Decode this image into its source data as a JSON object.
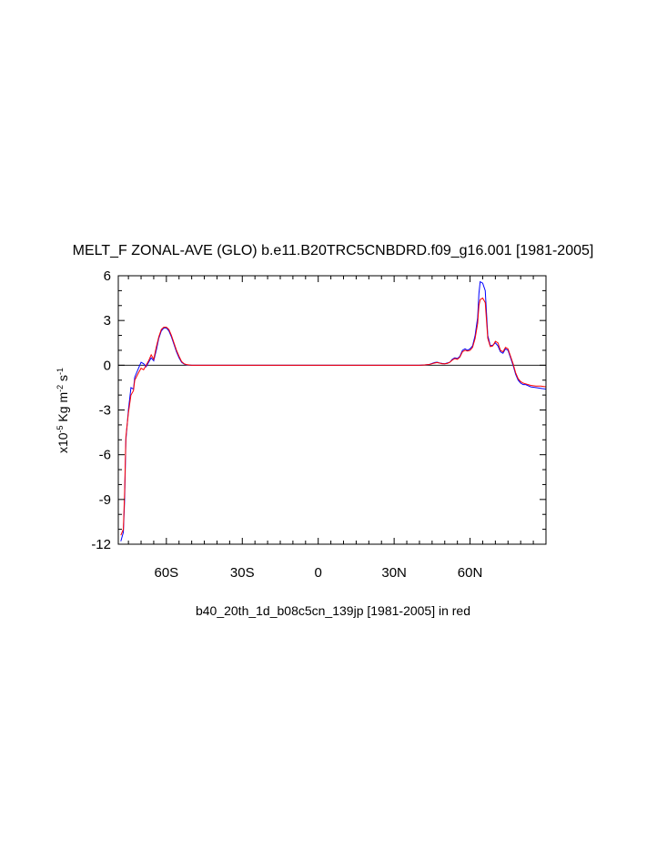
{
  "chart_data": {
    "type": "line",
    "title": "MELT_F ZONAL-AVE (GLO) b.e11.B20TRC5CNBDRD.f09_g16.001 [1981-2005]",
    "xlabel": "b40_20th_1d_b08c5cn_139jp [1981-2005] in red",
    "ylabel": {
      "prefix": "x10",
      "exp1": "-5",
      "mid": " Kg m",
      "exp2": "-2",
      "mid2": " s",
      "exp3": "-1"
    },
    "xlim": [
      -79,
      90
    ],
    "ylim": [
      -12,
      6
    ],
    "x_ticks": [
      {
        "value": -60,
        "label": "60S"
      },
      {
        "value": -30,
        "label": "30S"
      },
      {
        "value": 0,
        "label": "0"
      },
      {
        "value": 30,
        "label": "30N"
      },
      {
        "value": 60,
        "label": "60N"
      }
    ],
    "y_ticks": [
      {
        "value": 6,
        "label": "6"
      },
      {
        "value": 3,
        "label": "3"
      },
      {
        "value": 0,
        "label": "0"
      },
      {
        "value": -3,
        "label": "-3"
      },
      {
        "value": -6,
        "label": "-6"
      },
      {
        "value": -9,
        "label": "-9"
      },
      {
        "value": -12,
        "label": "-12"
      }
    ],
    "zero_line": true,
    "series": [
      {
        "color": "#0000ff",
        "points": [
          [
            -78,
            -11.8
          ],
          [
            -77,
            -11.2
          ],
          [
            -76.5,
            -9
          ],
          [
            -76,
            -5
          ],
          [
            -75,
            -3
          ],
          [
            -74,
            -1.5
          ],
          [
            -73,
            -1.6
          ],
          [
            -72.5,
            -0.8
          ],
          [
            -71,
            -0.2
          ],
          [
            -70,
            0.2
          ],
          [
            -69,
            0.1
          ],
          [
            -68,
            -0.1
          ],
          [
            -67,
            0.2
          ],
          [
            -66,
            0.5
          ],
          [
            -65,
            0.3
          ],
          [
            -64,
            1
          ],
          [
            -63,
            1.8
          ],
          [
            -62,
            2.3
          ],
          [
            -61,
            2.5
          ],
          [
            -60,
            2.5
          ],
          [
            -59,
            2.3
          ],
          [
            -58,
            1.9
          ],
          [
            -57,
            1.4
          ],
          [
            -56,
            0.9
          ],
          [
            -55,
            0.5
          ],
          [
            -54,
            0.2
          ],
          [
            -53,
            0.08
          ],
          [
            -52,
            0.03
          ],
          [
            -50,
            0
          ],
          [
            0,
            0
          ],
          [
            40,
            0
          ],
          [
            42,
            0.02
          ],
          [
            44,
            0.06
          ],
          [
            45,
            0.12
          ],
          [
            46,
            0.18
          ],
          [
            47,
            0.2
          ],
          [
            48,
            0.15
          ],
          [
            49,
            0.12
          ],
          [
            50,
            0.1
          ],
          [
            51,
            0.15
          ],
          [
            52,
            0.2
          ],
          [
            53,
            0.4
          ],
          [
            54,
            0.5
          ],
          [
            55,
            0.45
          ],
          [
            56,
            0.6
          ],
          [
            57,
            1.0
          ],
          [
            58,
            1.1
          ],
          [
            59,
            1.0
          ],
          [
            60,
            1.1
          ],
          [
            61,
            1.3
          ],
          [
            62,
            2.0
          ],
          [
            63,
            3.2
          ],
          [
            63.5,
            4.8
          ],
          [
            64,
            5.6
          ],
          [
            65,
            5.5
          ],
          [
            66,
            5.0
          ],
          [
            66.5,
            3.5
          ],
          [
            67,
            2.0
          ],
          [
            68,
            1.3
          ],
          [
            69,
            1.35
          ],
          [
            70,
            1.5
          ],
          [
            71,
            1.3
          ],
          [
            72,
            0.9
          ],
          [
            73,
            0.8
          ],
          [
            74,
            1.1
          ],
          [
            75,
            1.0
          ],
          [
            76,
            0.5
          ],
          [
            77,
            0
          ],
          [
            78,
            -0.6
          ],
          [
            79,
            -1.0
          ],
          [
            80,
            -1.2
          ],
          [
            81,
            -1.3
          ],
          [
            82,
            -1.3
          ],
          [
            84,
            -1.45
          ],
          [
            86,
            -1.5
          ],
          [
            88,
            -1.55
          ],
          [
            90,
            -1.6
          ]
        ]
      },
      {
        "color": "#ff0000",
        "points": [
          [
            -78,
            -11.4
          ],
          [
            -77,
            -11
          ],
          [
            -76.5,
            -8.5
          ],
          [
            -76,
            -4.8
          ],
          [
            -75,
            -3.2
          ],
          [
            -74,
            -2.0
          ],
          [
            -73,
            -1.7
          ],
          [
            -72.5,
            -1.0
          ],
          [
            -71,
            -0.5
          ],
          [
            -70,
            -0.2
          ],
          [
            -69,
            -0.3
          ],
          [
            -68,
            0
          ],
          [
            -67,
            0.3
          ],
          [
            -66,
            0.7
          ],
          [
            -65,
            0.4
          ],
          [
            -64,
            1.2
          ],
          [
            -63,
            1.9
          ],
          [
            -62,
            2.4
          ],
          [
            -61,
            2.55
          ],
          [
            -60,
            2.55
          ],
          [
            -59,
            2.4
          ],
          [
            -58,
            2.0
          ],
          [
            -57,
            1.5
          ],
          [
            -56,
            1.0
          ],
          [
            -55,
            0.6
          ],
          [
            -54,
            0.25
          ],
          [
            -53,
            0.1
          ],
          [
            -52,
            0.04
          ],
          [
            -50,
            0
          ],
          [
            0,
            0
          ],
          [
            40,
            0
          ],
          [
            42,
            0.02
          ],
          [
            44,
            0.05
          ],
          [
            45,
            0.1
          ],
          [
            46,
            0.15
          ],
          [
            47,
            0.18
          ],
          [
            48,
            0.14
          ],
          [
            49,
            0.1
          ],
          [
            50,
            0.1
          ],
          [
            51,
            0.12
          ],
          [
            52,
            0.2
          ],
          [
            53,
            0.35
          ],
          [
            54,
            0.45
          ],
          [
            55,
            0.4
          ],
          [
            56,
            0.55
          ],
          [
            57,
            0.9
          ],
          [
            58,
            1.0
          ],
          [
            59,
            0.95
          ],
          [
            60,
            1.0
          ],
          [
            61,
            1.2
          ],
          [
            62,
            1.8
          ],
          [
            63,
            2.8
          ],
          [
            63.5,
            4.0
          ],
          [
            64,
            4.4
          ],
          [
            65,
            4.5
          ],
          [
            66,
            4.2
          ],
          [
            66.5,
            3.0
          ],
          [
            67,
            1.8
          ],
          [
            68,
            1.25
          ],
          [
            69,
            1.3
          ],
          [
            70,
            1.6
          ],
          [
            71,
            1.5
          ],
          [
            72,
            1.0
          ],
          [
            73,
            0.9
          ],
          [
            74,
            1.2
          ],
          [
            75,
            1.1
          ],
          [
            76,
            0.6
          ],
          [
            77,
            0.1
          ],
          [
            78,
            -0.5
          ],
          [
            79,
            -0.9
          ],
          [
            80,
            -1.1
          ],
          [
            81,
            -1.2
          ],
          [
            82,
            -1.25
          ],
          [
            84,
            -1.35
          ],
          [
            86,
            -1.4
          ],
          [
            88,
            -1.4
          ],
          [
            90,
            -1.45
          ]
        ]
      }
    ]
  }
}
